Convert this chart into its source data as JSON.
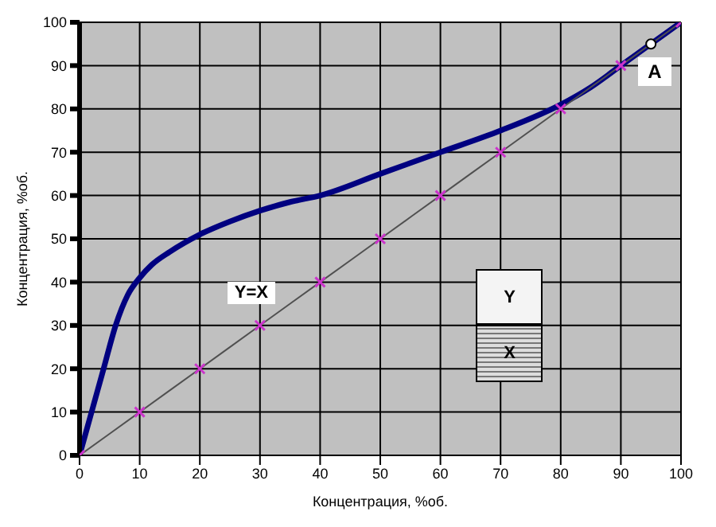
{
  "chart_data": {
    "type": "line",
    "xlabel": "Концентрация, %об.",
    "ylabel": "Концентрация, %об.",
    "xlim": [
      0,
      100
    ],
    "xticks": [
      0,
      10,
      20,
      30,
      40,
      50,
      60,
      70,
      80,
      90,
      100
    ],
    "ylim": [
      0,
      100
    ],
    "yticks": [
      0,
      10,
      20,
      30,
      40,
      50,
      60,
      70,
      80,
      90,
      100
    ],
    "grid": true,
    "legend": false,
    "series": [
      {
        "color": "#000080",
        "marker": "none",
        "x": [
          0,
          2,
          4,
          6,
          8,
          10,
          12,
          15,
          20,
          25,
          30,
          35,
          40,
          50,
          60,
          70,
          80,
          85,
          90,
          95,
          100
        ],
        "values": [
          0,
          10,
          20,
          30,
          37,
          41,
          44,
          47,
          51,
          54,
          56.5,
          58.5,
          60,
          65,
          70,
          75,
          81,
          85,
          90,
          95,
          100
        ]
      },
      {
        "name": "Y=X",
        "color": "#505050",
        "marker": "cross",
        "colors": [
          "#cc33cc",
          "#cc33cc",
          "#cc33cc",
          "#cc33cc",
          "#cc33cc",
          "#cc33cc",
          "#cc33cc",
          "#cc33cc",
          "#cc33cc",
          "#cc33cc",
          "#cc33cc"
        ],
        "x": [
          0,
          10,
          20,
          30,
          40,
          50,
          60,
          70,
          80,
          90,
          100
        ],
        "values": [
          0,
          10,
          20,
          30,
          40,
          50,
          60,
          70,
          80,
          90,
          100
        ]
      }
    ],
    "annotations": [
      {
        "text": "A",
        "x": 95,
        "y": 95
      },
      "Y",
      "X"
    ]
  }
}
